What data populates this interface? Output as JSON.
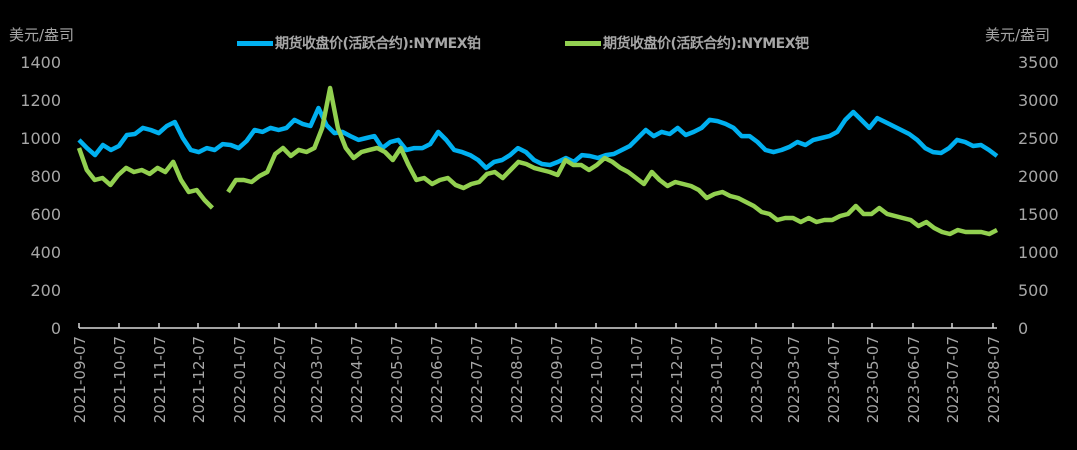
{
  "chart_data": {
    "type": "line",
    "title": "",
    "left_axis": {
      "label": "美元/盎司",
      "min": 0,
      "max": 1400,
      "step": 200,
      "ticks": [
        "0",
        "200",
        "400",
        "600",
        "800",
        "1000",
        "1200",
        "1400"
      ]
    },
    "right_axis": {
      "label": "美元/盎司",
      "min": 0,
      "max": 3500,
      "step": 500,
      "ticks": [
        "0",
        "500",
        "1000",
        "1500",
        "2000",
        "2500",
        "3000",
        "3500"
      ]
    },
    "x_ticks": [
      "2021-09-07",
      "2021-10-07",
      "2021-11-07",
      "2021-12-07",
      "2022-01-07",
      "2022-02-07",
      "2022-03-07",
      "2022-04-07",
      "2022-05-07",
      "2022-06-07",
      "2022-07-07",
      "2022-08-07",
      "2022-09-07",
      "2022-10-07",
      "2022-11-07",
      "2022-12-07",
      "2023-01-07",
      "2023-02-07",
      "2023-03-07",
      "2023-04-07",
      "2023-05-07",
      "2023-06-07",
      "2023-07-07",
      "2023-08-07"
    ],
    "grid": false,
    "legend_position": "top",
    "series": [
      {
        "name": "期货收盘价(活跃合约):NYMEX铂",
        "axis": "left",
        "color": "#00b0f0",
        "values": [
          990,
          947,
          910,
          963,
          937,
          958,
          1016,
          1021,
          1053,
          1042,
          1026,
          1063,
          1084,
          1000,
          937,
          926,
          947,
          937,
          968,
          963,
          947,
          984,
          1042,
          1032,
          1053,
          1042,
          1053,
          1095,
          1074,
          1063,
          1158,
          1068,
          1026,
          1032,
          1010,
          990,
          1000,
          1010,
          947,
          979,
          990,
          937,
          947,
          947,
          968,
          1032,
          990,
          937,
          926,
          910,
          884,
          842,
          874,
          884,
          910,
          947,
          926,
          884,
          863,
          858,
          874,
          895,
          874,
          910,
          905,
          895,
          910,
          916,
          937,
          958,
          1000,
          1042,
          1010,
          1032,
          1021,
          1053,
          1016,
          1032,
          1053,
          1095,
          1089,
          1074,
          1053,
          1010,
          1010,
          979,
          937,
          926,
          937,
          953,
          979,
          963,
          990,
          1000,
          1010,
          1032,
          1095,
          1137,
          1095,
          1053,
          1105,
          1084,
          1063,
          1042,
          1021,
          990,
          947,
          926,
          921,
          947,
          990,
          979,
          958,
          963,
          937,
          905
        ]
      },
      {
        "name": "期货收盘价(活跃合约):NYMEX钯",
        "axis": "right",
        "color": "#92d050",
        "values": [
          2369,
          2079,
          1948,
          1974,
          1882,
          2013,
          2106,
          2053,
          2079,
          2027,
          2106,
          2053,
          2185,
          1948,
          1790,
          1816,
          1684,
          1579,
          null,
          1790,
          1948,
          1948,
          1921,
          2000,
          2053,
          2290,
          2369,
          2264,
          2343,
          2316,
          2369,
          2632,
          3158,
          2632,
          2369,
          2237,
          2316,
          2343,
          2369,
          2316,
          2211,
          2369,
          2145,
          1948,
          1974,
          1895,
          1948,
          1974,
          1882,
          1842,
          1895,
          1921,
          2027,
          2053,
          1974,
          2079,
          2185,
          2158,
          2106,
          2079,
          2053,
          2013,
          2211,
          2145,
          2145,
          2079,
          2145,
          2237,
          2185,
          2106,
          2053,
          1974,
          1895,
          2053,
          1948,
          1869,
          1921,
          1895,
          1869,
          1816,
          1711,
          1763,
          1790,
          1737,
          1711,
          1658,
          1605,
          1526,
          1500,
          1421,
          1447,
          1447,
          1395,
          1447,
          1395,
          1421,
          1421,
          1474,
          1500,
          1605,
          1500,
          1500,
          1579,
          1500,
          1474,
          1447,
          1421,
          1342,
          1395,
          1316,
          1263,
          1237,
          1290,
          1263,
          1263,
          1263,
          1237,
          1290
        ]
      }
    ]
  },
  "legend": {
    "items": [
      {
        "label": "期货收盘价(活跃合约):NYMEX铂",
        "color": "#00b0f0"
      },
      {
        "label": "期货收盘价(活跃合约):NYMEX钯",
        "color": "#92d050"
      }
    ]
  },
  "axes": {
    "left_unit": "美元/盎司",
    "right_unit": "美元/盎司"
  }
}
